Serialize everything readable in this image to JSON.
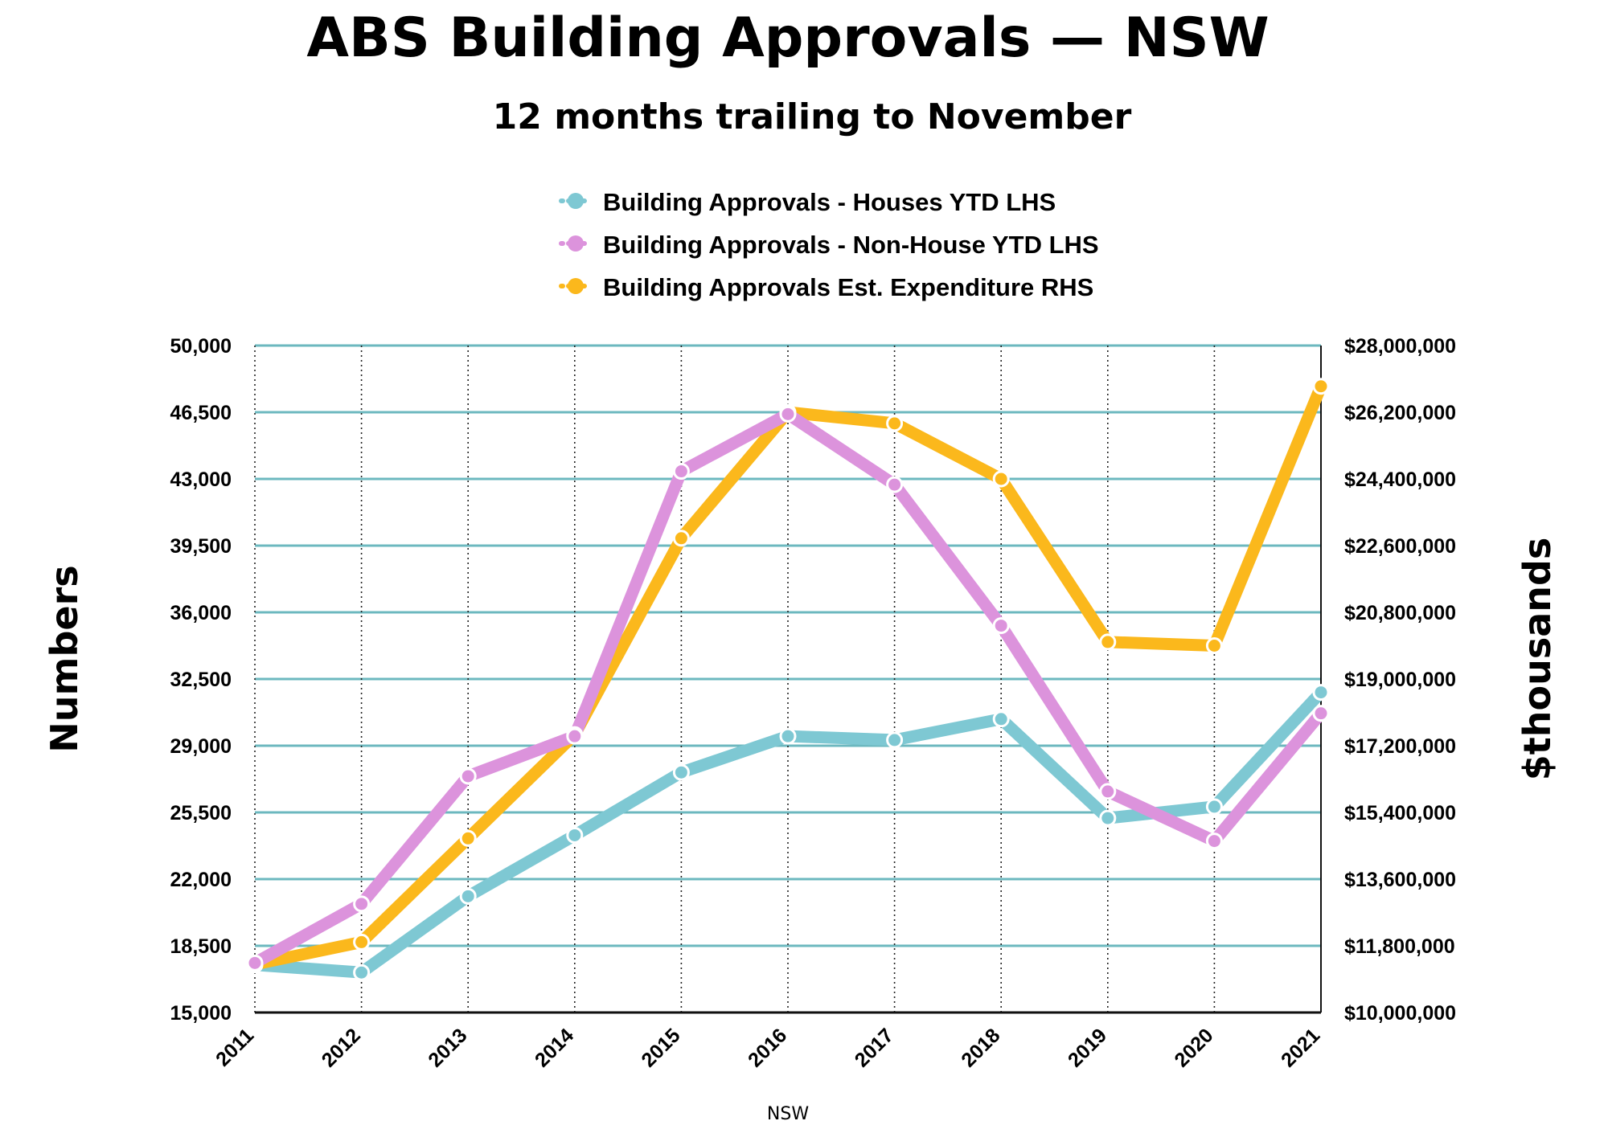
{
  "chart_data": {
    "type": "line",
    "title": "ABS Building Approvals — NSW",
    "subtitle": "12 months trailing to November",
    "xlabel": "NSW",
    "ylabel_left": "Numbers",
    "ylabel_right": "$thousands",
    "categories": [
      "2011",
      "2012",
      "2013",
      "2014",
      "2015",
      "2016",
      "2017",
      "2018",
      "2019",
      "2020",
      "2021"
    ],
    "ylim_left": [
      15000,
      50000
    ],
    "ylim_right": [
      10000000,
      28000000
    ],
    "yticks_left": [
      "15,000",
      "18,500",
      "22,000",
      "25,500",
      "29,000",
      "32,500",
      "36,000",
      "39,500",
      "43,000",
      "46,500",
      "50,000"
    ],
    "yticks_right": [
      "$10,000,000",
      "$11,800,000",
      "$13,600,000",
      "$15,400,000",
      "$17,200,000",
      "$19,000,000",
      "$20,800,000",
      "$22,600,000",
      "$24,400,000",
      "$26,200,000",
      "$28,000,000"
    ],
    "legend_position": "top",
    "grid": "horizontal solid, vertical dotted",
    "series": [
      {
        "name": "Building Approvals - Houses YTD LHS",
        "axis": "left",
        "color": "#7ec8d3",
        "values": [
          17500,
          17100,
          21100,
          24300,
          27600,
          29500,
          29300,
          30400,
          25200,
          25800,
          31800
        ]
      },
      {
        "name": "Building Approvals - Non-House YTD LHS",
        "axis": "left",
        "color": "#dc93dc",
        "values": [
          17600,
          20700,
          27400,
          29500,
          43400,
          46400,
          42700,
          35300,
          26600,
          24000,
          30700
        ]
      },
      {
        "name": "Building Approvals Est. Expenditure RHS",
        "axis": "right",
        "color": "#fbb81c",
        "values": [
          11300000,
          11900000,
          14700000,
          17500000,
          22800000,
          26200000,
          25900000,
          24400000,
          20000000,
          19900000,
          26900000
        ]
      }
    ]
  }
}
